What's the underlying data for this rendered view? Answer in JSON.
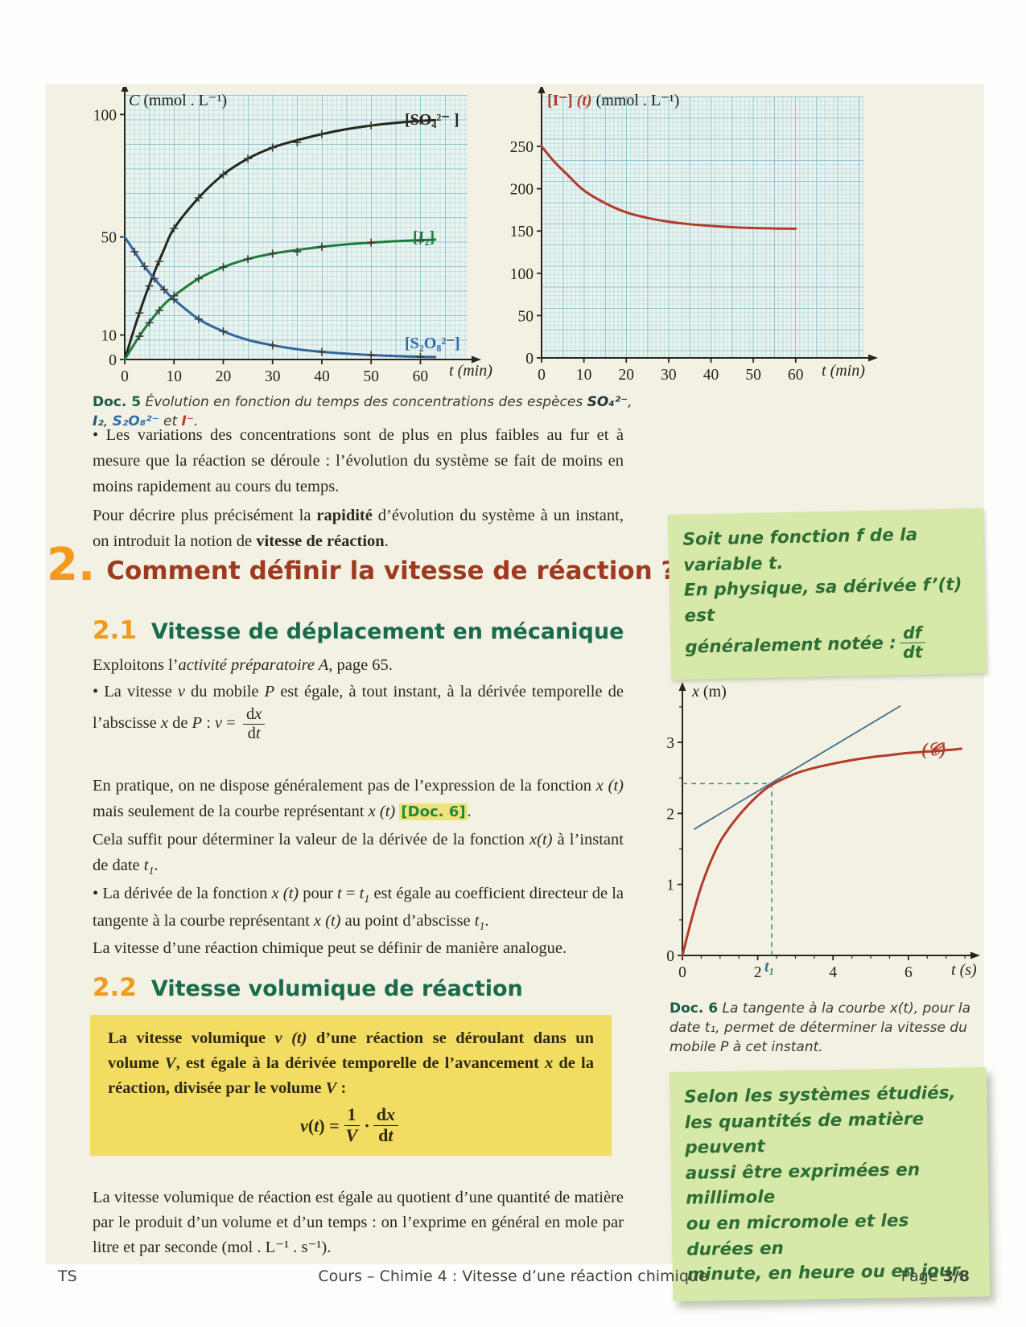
{
  "doc5": {
    "caption_segments": [
      {
        "t": "Doc. 5",
        "c": "doclabel"
      },
      {
        "t": "  Évolution en fonction du temps des concentrations des espèces ",
        "c": "i"
      },
      {
        "t": "SO₄²⁻",
        "c": "i sp-so4"
      },
      {
        "t": ", ",
        "c": "i"
      },
      {
        "t": "I₂",
        "c": "i sp-i2"
      },
      {
        "t": ", ",
        "c": "i"
      },
      {
        "t": "S₂O₈²⁻",
        "c": "i sp-s2o8"
      },
      {
        "t": " et ",
        "c": "i"
      },
      {
        "t": "I⁻",
        "c": "i sp-i"
      },
      {
        "t": ".",
        "c": "i"
      }
    ],
    "left_title_segments": [
      {
        "t": "C",
        "c": "i"
      },
      {
        "t": " (mmol . L⁻¹)"
      }
    ],
    "right_title_segments": [
      {
        "t": "[I⁻] ",
        "c": "ttl-red"
      },
      {
        "t": "(t)",
        "c": "ttl-red i"
      },
      {
        "t": " (mmol . L⁻¹)"
      }
    ],
    "xaxis_label_segments": [
      {
        "t": "t",
        "c": "i"
      },
      {
        "t": " (min)"
      }
    ],
    "curve_labels": {
      "so4": "[SO₄²⁻ ]",
      "i2": "[I₂]",
      "s2o8": "[S₂O₈²⁻]"
    }
  },
  "doc6": {
    "title_segments": [
      {
        "t": "x",
        "c": "i"
      },
      {
        "t": " (m)"
      }
    ],
    "xaxis_label_segments": [
      {
        "t": "t",
        "c": "i"
      },
      {
        "t": " (s)"
      }
    ],
    "t1_label": "t₁",
    "curve_label": "(𝒞)",
    "caption_segments": [
      {
        "t": "Doc. 6",
        "c": "doclabel"
      },
      {
        "t": "  La tangente à la courbe x(t), pour la date t₁, permet de déterminer la vitesse du mobile P à cet instant.",
        "c": "i"
      }
    ]
  },
  "paragraphs": {
    "p1": [
      {
        "t": "•  "
      },
      {
        "t": "Les variations des concentrations sont de plus en plus faibles au fur et à mesure que la réaction se déroule : l’évolution du système se fait de moins en moins rapidement au cours du temps."
      }
    ],
    "p2": [
      {
        "t": "Pour décrire plus précisément la "
      },
      {
        "t": "rapidité",
        "c": "b"
      },
      {
        "t": " d’évolution du système à un instant, on introduit la notion de "
      },
      {
        "t": "vitesse de réaction",
        "c": "b"
      },
      {
        "t": "."
      }
    ],
    "p3": [
      {
        "t": "Exploitons l’"
      },
      {
        "t": "activité préparatoire A,",
        "c": "i"
      },
      {
        "t": " page 65."
      }
    ],
    "p4": [
      {
        "t": "•  "
      },
      {
        "t": "La vitesse "
      },
      {
        "t": "v",
        "c": "i"
      },
      {
        "t": " du mobile "
      },
      {
        "t": "P",
        "c": "i"
      },
      {
        "t": " est égale, à tout instant, à la dérivée temporelle de l’abscisse "
      },
      {
        "t": "x",
        "c": "i"
      },
      {
        "t": " de "
      },
      {
        "t": "P",
        "c": "i"
      },
      {
        "t": " : "
      },
      {
        "t": "v",
        "c": "i"
      },
      {
        "t": " = "
      },
      {
        "frac": [
          [
            {
              "t": "d"
            },
            {
              "t": "x",
              "c": "i"
            }
          ],
          [
            {
              "t": "d"
            },
            {
              "t": "t",
              "c": "i"
            }
          ]
        ]
      }
    ],
    "p5": [
      {
        "t": "En pratique, on ne dispose généralement pas de l’expression de la fonction "
      },
      {
        "t": "x (t)",
        "c": "i"
      },
      {
        "t": " mais seulement de la courbe représentant "
      },
      {
        "t": "x (t)",
        "c": "i"
      },
      {
        "t": " "
      },
      {
        "t": "[Doc. 6]",
        "c": "docref"
      },
      {
        "t": "."
      }
    ],
    "p6": [
      {
        "t": "Cela suffit pour déterminer la valeur de la dérivée de la fonction "
      },
      {
        "t": "x(t)",
        "c": "i"
      },
      {
        "t": " à l’instant de date "
      },
      {
        "t": "t",
        "c": "i"
      },
      {
        "t": "1",
        "c": "sub"
      },
      {
        "t": "."
      }
    ],
    "p7": [
      {
        "t": "•  "
      },
      {
        "t": "La dérivée de la fonction "
      },
      {
        "t": "x (t)",
        "c": "i"
      },
      {
        "t": " pour "
      },
      {
        "t": "t",
        "c": "i"
      },
      {
        "t": " = "
      },
      {
        "t": "t",
        "c": "i"
      },
      {
        "t": "1",
        "c": "sub"
      },
      {
        "t": " est égale au coefficient directeur de la tangente à la courbe représentant "
      },
      {
        "t": "x (t)",
        "c": "i"
      },
      {
        "t": " au point d’abscisse "
      },
      {
        "t": "t",
        "c": "i"
      },
      {
        "t": "1",
        "c": "sub"
      },
      {
        "t": "."
      }
    ],
    "p8": [
      {
        "t": "La vitesse d’une réaction chimique peut se définir de manière analogue."
      }
    ],
    "p9": [
      {
        "t": "La vitesse volumique de réaction est égale au quotient d’une quantité de matière par le produit d’un volume et d’un temps : on l’exprime en général en mole par litre et par seconde (mol . L⁻¹ . s⁻¹)."
      }
    ]
  },
  "sections": {
    "sec2": {
      "num": "2.",
      "title": "Comment définir la vitesse de réaction ?"
    },
    "sec21": {
      "num": "2.1",
      "title": "Vitesse de déplacement en mécanique"
    },
    "sec22": {
      "num": "2.2",
      "title": "Vitesse volumique de réaction"
    }
  },
  "notes": {
    "note1": {
      "line1": "Soit une fonction f de la variable t.",
      "line2": "En physique, sa dérivée f’(t) est",
      "line3": "généralement notée : ",
      "frac_num": "df",
      "frac_den": "dt"
    },
    "note2": {
      "lines": [
        "Selon les systèmes étudiés,",
        "les quantités de matière peuvent",
        "aussi être exprimées en millimole",
        "ou en micromole et les durées en",
        "minute, en heure ou en jour."
      ]
    }
  },
  "yellow_box": {
    "text_segments": [
      {
        "t": "La vitesse volumique "
      },
      {
        "t": "v (t)",
        "c": "i"
      },
      {
        "t": " d’une réaction se déroulant dans un volume "
      },
      {
        "t": "V",
        "c": "i"
      },
      {
        "t": ", est égale à la dérivée temporelle de l’avancement "
      },
      {
        "t": "x",
        "c": "i"
      },
      {
        "t": " de la réaction, divisée par le volume "
      },
      {
        "t": "V",
        "c": "i"
      },
      {
        "t": " :"
      }
    ],
    "formula_segments": [
      {
        "t": "v",
        "c": "i"
      },
      {
        "t": "("
      },
      {
        "t": "t",
        "c": "i"
      },
      {
        "t": ") = "
      },
      {
        "frac": [
          [
            {
              "t": "1"
            }
          ],
          [
            {
              "t": "V",
              "c": "i"
            }
          ]
        ]
      },
      {
        "t": "·"
      },
      {
        "frac": [
          [
            {
              "t": "d"
            },
            {
              "t": "x",
              "c": "i"
            }
          ],
          [
            {
              "t": "d"
            },
            {
              "t": "t",
              "c": "i"
            }
          ]
        ]
      }
    ]
  },
  "footer": {
    "left": "TS",
    "center": "Cours – Chimie 4 : Vitesse d’une réaction chimique",
    "right_segments": [
      {
        "t": "Page "
      },
      {
        "t": "3/8",
        "c": "b"
      }
    ]
  },
  "chart_data": [
    {
      "id": "doc5-left",
      "type": "line",
      "title": "C (mmol . L⁻¹)",
      "xlabel": "t (min)",
      "ylabel": "C",
      "xlim": [
        0,
        69.4
      ],
      "ylim": [
        0,
        108
      ],
      "xticks": [
        0,
        10,
        20,
        30,
        40,
        50,
        60
      ],
      "yticks": [
        0,
        10,
        50,
        100
      ],
      "grid": true,
      "legend_position": "on-curve",
      "series": [
        {
          "name": "[SO₄²⁻]",
          "color": "#26261f",
          "width": 3,
          "x": [
            0,
            2,
            4,
            6,
            8,
            10,
            15,
            20,
            25,
            30,
            35,
            40,
            45,
            50,
            55,
            60,
            63
          ],
          "y": [
            0,
            13,
            25,
            35.5,
            45,
            53.5,
            66,
            75.5,
            82,
            86.5,
            89.5,
            92,
            94,
            95.5,
            96.6,
            97.4,
            97.7
          ],
          "mx": [
            3,
            5,
            7,
            10,
            15,
            20,
            25,
            30,
            35,
            40,
            50,
            60
          ],
          "my": [
            19,
            30,
            40,
            53.5,
            66,
            75.5,
            82,
            86.5,
            88.6,
            92,
            95.5,
            97.4
          ]
        },
        {
          "name": "[I₂]",
          "color": "#1e7c3a",
          "width": 3,
          "x": [
            0,
            2,
            4,
            6,
            8,
            10,
            15,
            20,
            25,
            30,
            35,
            40,
            45,
            50,
            55,
            60,
            63
          ],
          "y": [
            0,
            6.5,
            12.5,
            17.7,
            22.5,
            26,
            33,
            37.7,
            41,
            43.2,
            44.7,
            46,
            47,
            47.7,
            48.3,
            48.7,
            48.9
          ],
          "mx": [
            3,
            5,
            7,
            10,
            15,
            20,
            25,
            30,
            35,
            40,
            50,
            60
          ],
          "my": [
            9.5,
            15,
            20,
            26,
            33,
            37.7,
            41,
            43.2,
            44,
            46,
            47.7,
            48.7
          ]
        },
        {
          "name": "[S₂O₈²⁻]",
          "color": "#33659e",
          "width": 3,
          "x": [
            0,
            2,
            4,
            6,
            8,
            10,
            15,
            20,
            25,
            30,
            35,
            40,
            45,
            50,
            55,
            60,
            63
          ],
          "y": [
            50,
            44,
            38,
            33,
            28.5,
            24.5,
            16.5,
            11.5,
            8,
            5.8,
            4.2,
            3.1,
            2.4,
            1.8,
            1.4,
            1.1,
            1.0
          ],
          "mx": [
            2,
            4,
            6,
            8,
            10,
            15,
            20,
            30,
            40,
            50,
            60
          ],
          "my": [
            44,
            38,
            33,
            28.5,
            24.5,
            16.5,
            11.5,
            5.8,
            3.1,
            1.8,
            1.1
          ]
        }
      ]
    },
    {
      "id": "doc5-right",
      "type": "line",
      "title": "[I⁻] (t) (mmol . L⁻¹)",
      "xlabel": "t (min)",
      "xlim": [
        0,
        76
      ],
      "ylim": [
        0,
        309
      ],
      "xticks": [
        0,
        10,
        20,
        30,
        40,
        50,
        60
      ],
      "yticks": [
        0,
        50,
        100,
        150,
        200,
        250
      ],
      "grid": true,
      "series": [
        {
          "name": "[I⁻]",
          "color": "#b23b2a",
          "width": 3,
          "x": [
            0,
            3,
            6,
            10,
            15,
            20,
            25,
            30,
            35,
            40,
            45,
            50,
            55,
            60
          ],
          "y": [
            250,
            232,
            217,
            198,
            183,
            172,
            165.5,
            161,
            158,
            156,
            154.5,
            153.5,
            153,
            152.7
          ]
        }
      ]
    },
    {
      "id": "doc6",
      "type": "line",
      "title": "x (m)",
      "xlabel": "t (s)",
      "xlim": [
        0,
        7.52
      ],
      "ylim": [
        0,
        3.68
      ],
      "xticks": [
        0,
        2,
        4,
        6
      ],
      "yticks": [
        0,
        1,
        2,
        3
      ],
      "minor_step": 0.5,
      "grid": false,
      "series": [
        {
          "name": "(𝒞)",
          "color": "#b23b2a",
          "width": 3,
          "x": [
            0,
            0.25,
            0.5,
            0.75,
            1,
            1.25,
            1.5,
            1.75,
            2,
            2.25,
            2.5,
            3,
            3.5,
            4,
            4.5,
            5,
            5.5,
            6,
            6.5,
            7,
            7.4
          ],
          "y": [
            0,
            0.52,
            0.97,
            1.32,
            1.6,
            1.8,
            1.97,
            2.12,
            2.25,
            2.36,
            2.44,
            2.56,
            2.64,
            2.7,
            2.75,
            2.79,
            2.82,
            2.85,
            2.87,
            2.89,
            2.91
          ]
        },
        {
          "name": "tangente",
          "color": "#41708f",
          "width": 1.8,
          "straight": true,
          "x": [
            0.32,
            5.78
          ],
          "y": [
            1.78,
            3.51
          ]
        }
      ],
      "annotations": {
        "t1": 2.37,
        "x_t1": 2.42,
        "t1_label": "t₁",
        "curve_label": "(𝒞)",
        "dash_color": "#4a8d96"
      }
    }
  ]
}
